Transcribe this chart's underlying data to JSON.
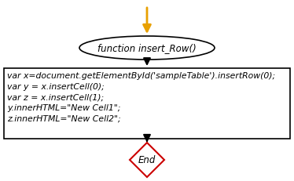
{
  "bg_color": "#ffffff",
  "border_color": "#000000",
  "arrow_color": "#000000",
  "start_arrow_color": "#e8a000",
  "oval_text": "function insert_Row()",
  "box_text": "var x=document.getElementById('sampleTable').insertRow(0);\nvar y = x.insertCell(0);\nvar z = x.insertCell(1);\ny.innerHTML=\"New Cell1\";\nz.innerHTML=\"New Cell2\";",
  "diamond_text": "End",
  "diamond_color": "#ffffff",
  "diamond_border": "#cc0000",
  "fig_width": 3.74,
  "fig_height": 2.32,
  "dpi": 100
}
